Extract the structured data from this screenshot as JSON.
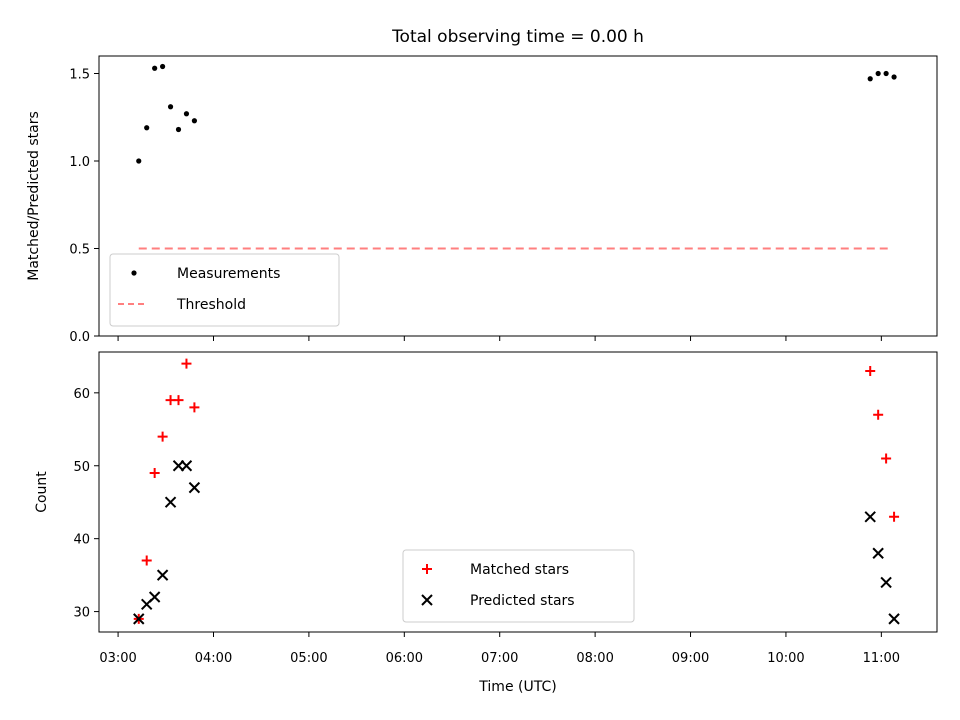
{
  "chart_data": {
    "title": "Total observing time = 0.00 h",
    "xlabel": "Time (UTC)",
    "xticks": [
      "03:00",
      "04:00",
      "05:00",
      "06:00",
      "07:00",
      "08:00",
      "09:00",
      "10:00",
      "11:00"
    ],
    "x_range": [
      "02:48",
      "11:35"
    ],
    "colors": {
      "measurements": "#000000",
      "threshold": "#ff7f7f",
      "matched": "#ff0000",
      "predicted": "#000000"
    },
    "panels": [
      {
        "type": "scatter",
        "ylabel": "Matched/Predicted stars",
        "ylim": [
          0,
          1.6
        ],
        "yticks": [
          "0.0",
          "0.5",
          "1.0",
          "1.5"
        ],
        "legend_placement": "lower-left",
        "series": [
          {
            "name": "Measurements",
            "marker": "dot",
            "points": [
              {
                "x": "03:13",
                "y": 1.0
              },
              {
                "x": "03:18",
                "y": 1.19
              },
              {
                "x": "03:23",
                "y": 1.53
              },
              {
                "x": "03:28",
                "y": 1.54
              },
              {
                "x": "03:33",
                "y": 1.31
              },
              {
                "x": "03:38",
                "y": 1.18
              },
              {
                "x": "03:43",
                "y": 1.27
              },
              {
                "x": "03:48",
                "y": 1.23
              },
              {
                "x": "10:53",
                "y": 1.47
              },
              {
                "x": "10:58",
                "y": 1.5
              },
              {
                "x": "11:03",
                "y": 1.5
              },
              {
                "x": "11:08",
                "y": 1.48
              }
            ]
          },
          {
            "name": "Threshold",
            "marker": "dashed-line",
            "points": [
              {
                "x": "03:13",
                "y": 0.5
              },
              {
                "x": "11:04",
                "y": 0.5
              }
            ]
          }
        ]
      },
      {
        "type": "scatter",
        "ylabel": "Count",
        "ylim": [
          27.2,
          65.6
        ],
        "yticks": [
          "30",
          "40",
          "50",
          "60"
        ],
        "legend_placement": "lower-center",
        "series": [
          {
            "name": "Matched stars",
            "marker": "plus",
            "points": [
              {
                "x": "03:13",
                "y": 29
              },
              {
                "x": "03:18",
                "y": 37
              },
              {
                "x": "03:23",
                "y": 49
              },
              {
                "x": "03:28",
                "y": 54
              },
              {
                "x": "03:33",
                "y": 59
              },
              {
                "x": "03:38",
                "y": 59
              },
              {
                "x": "03:43",
                "y": 64
              },
              {
                "x": "03:48",
                "y": 58
              },
              {
                "x": "10:53",
                "y": 63
              },
              {
                "x": "10:58",
                "y": 57
              },
              {
                "x": "11:03",
                "y": 51
              },
              {
                "x": "11:08",
                "y": 43
              }
            ]
          },
          {
            "name": "Predicted stars",
            "marker": "x",
            "points": [
              {
                "x": "03:13",
                "y": 29
              },
              {
                "x": "03:18",
                "y": 31
              },
              {
                "x": "03:23",
                "y": 32
              },
              {
                "x": "03:28",
                "y": 35
              },
              {
                "x": "03:33",
                "y": 45
              },
              {
                "x": "03:38",
                "y": 50
              },
              {
                "x": "03:43",
                "y": 50
              },
              {
                "x": "03:48",
                "y": 47
              },
              {
                "x": "10:53",
                "y": 43
              },
              {
                "x": "10:58",
                "y": 38
              },
              {
                "x": "11:03",
                "y": 34
              },
              {
                "x": "11:08",
                "y": 29
              }
            ]
          }
        ]
      }
    ]
  }
}
